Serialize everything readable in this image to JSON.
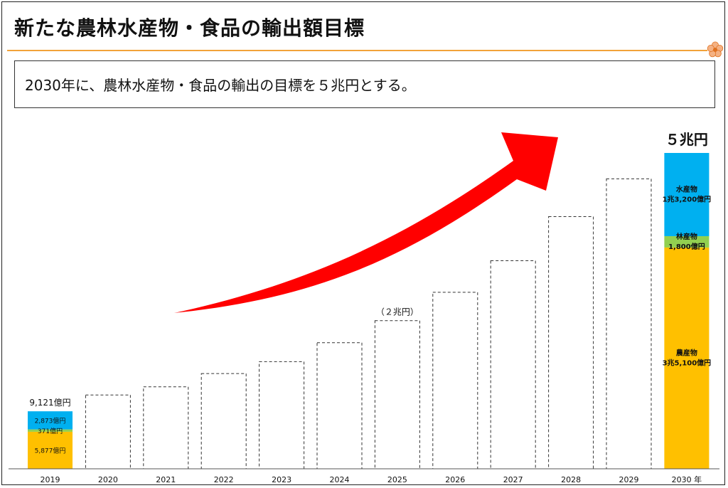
{
  "title": "新たな農林水産物・食品の輸出額目標",
  "goal_text": "2030年に、農林水産物・食品の輸出の目標を５兆円とする。",
  "colors": {
    "accent": "#f2a23a",
    "agriculture": "#ffc000",
    "forestry": "#92d050",
    "fishery": "#00b0f0",
    "arrow": "#ff0000"
  },
  "icons": {
    "corner": "plum-blossom-icon",
    "trend": "red-curved-arrow"
  },
  "chart_data": {
    "type": "bar",
    "categories": [
      "2019",
      "2020",
      "2021",
      "2022",
      "2023",
      "2024",
      "2025",
      "2026",
      "2027",
      "2028",
      "2029",
      "2030 年"
    ],
    "values_oku_yen": [
      9121,
      11700,
      13000,
      15100,
      17000,
      20000,
      23500,
      28000,
      33000,
      40000,
      46000,
      50100
    ],
    "bar_style": [
      "stacked",
      "outline",
      "outline",
      "outline",
      "outline",
      "outline",
      "outline",
      "outline",
      "outline",
      "outline",
      "outline",
      "stacked"
    ],
    "stacked": {
      "2019": [
        {
          "name": "農産物",
          "value": 5877,
          "label": "5,877億円"
        },
        {
          "name": "林産物",
          "value": 371,
          "label": "371億円"
        },
        {
          "name": "水産物",
          "value": 2873,
          "label": "2,873億円"
        }
      ],
      "2030": [
        {
          "name": "農産物",
          "value": 35100,
          "label": "3兆5,100億円"
        },
        {
          "name": "林産物",
          "value": 1800,
          "label": "1,800億円"
        },
        {
          "name": "水産物",
          "value": 13200,
          "label": "1兆3,200億円"
        }
      ]
    },
    "top_labels": {
      "2019": "9,121億円",
      "2025": "（２兆円）",
      "2030": "５兆円"
    },
    "ylim": [
      0,
      51000
    ],
    "grid": false,
    "legend": "none"
  }
}
